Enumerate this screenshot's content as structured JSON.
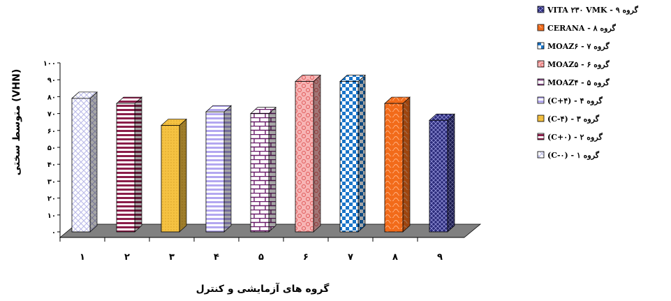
{
  "chart_data": {
    "type": "bar",
    "categories": [
      "۱",
      "۲",
      "۳",
      "۴",
      "۵",
      "۶",
      "۷",
      "۸",
      "۹"
    ],
    "series": [
      {
        "values": [
          79,
          76,
          63,
          71,
          70,
          89,
          89,
          76,
          66
        ]
      }
    ],
    "xlabel": "گروه های آزمایشی و کنترل",
    "ylabel": "متوسط سختی (VHN)",
    "ylim": [
      0,
      100
    ],
    "yticks": [
      0,
      10,
      20,
      30,
      40,
      50,
      60,
      70,
      80,
      90,
      100
    ],
    "ytick_labels": [
      "۰",
      "۱۰",
      "۲۰",
      "۳۰",
      "۴۰",
      "۵۰",
      "۶۰",
      "۷۰",
      "۸۰",
      "۹۰",
      "۱۰۰"
    ],
    "grid": false,
    "legend_position": "right",
    "legend": [
      "گروه ۹ - VITA ۲۳۰ VMK",
      "گروه ۸ - CERANA",
      "گروه ۷ - MOAZ۶",
      "گروه ۶ - MOAZ۵",
      "گروه ۵ - MOAZ۴",
      "گروه ۴ - (C+۴)",
      "گروه ۳ - (C-۴)",
      "گروه ۲ - (C+۰)",
      "گروه ۱ - (C-۰)"
    ],
    "bar_colors": [
      "#e6e6fa",
      "#8b1e4a",
      "#f5c242",
      "#b3a7f0",
      "#6a1b6a",
      "#f08080",
      "#1a75c9",
      "#f26b1a",
      "#2b2b7a"
    ],
    "floor_color": "#808080"
  }
}
